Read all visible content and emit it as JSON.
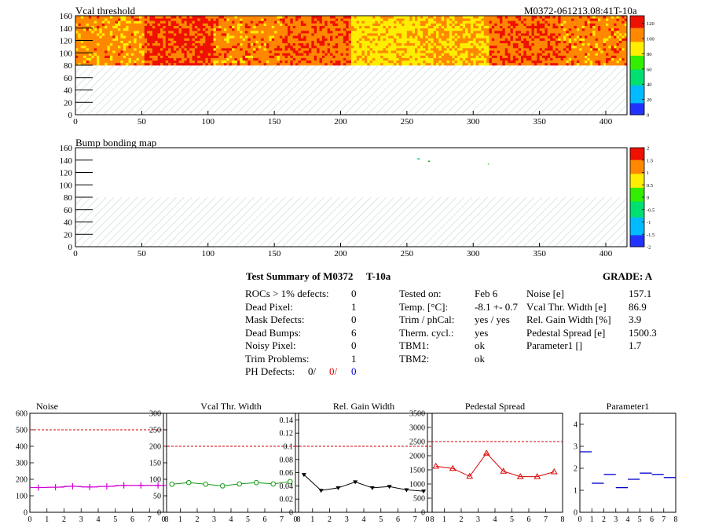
{
  "maps": [
    {
      "title": "Vcal threshold",
      "module_label": "M0372-061213.08:41T-10a",
      "x_ticks": [
        "0",
        "50",
        "100",
        "150",
        "200",
        "250",
        "300",
        "350",
        "400"
      ],
      "y_ticks": [
        "0",
        "20",
        "40",
        "60",
        "80",
        "100",
        "120",
        "140",
        "160"
      ],
      "palette_ticks": [
        "0",
        "20",
        "40",
        "60",
        "80",
        "100",
        "120"
      ],
      "x_range": [
        0,
        416
      ],
      "y_range": [
        0,
        160
      ],
      "hatched_region_y": [
        0,
        80
      ],
      "palette_range": [
        0,
        130
      ]
    },
    {
      "title": "Bump bonding map",
      "x_ticks": [
        "0",
        "50",
        "100",
        "150",
        "200",
        "250",
        "300",
        "350",
        "400"
      ],
      "y_ticks": [
        "0",
        "20",
        "40",
        "60",
        "80",
        "100",
        "120",
        "140",
        "160"
      ],
      "palette_ticks": [
        "-2",
        "-1.5",
        "-1",
        "-0.5",
        "0",
        "0.5",
        "1",
        "1.5",
        "2"
      ],
      "x_range": [
        0,
        416
      ],
      "y_range": [
        0,
        160
      ],
      "hatched_region_y": [
        0,
        80
      ],
      "palette_range": [
        -2,
        2
      ]
    }
  ],
  "summary": {
    "title": "Test Summary of M0372",
    "test_id": "T-10a",
    "grade": "GRADE:  A",
    "col1": [
      {
        "label": "ROCs > 1% defects:",
        "value": "0"
      },
      {
        "label": "Dead Pixel:",
        "value": "1"
      },
      {
        "label": "Mask Defects:",
        "value": "0"
      },
      {
        "label": "Dead Bumps:",
        "value": "6"
      },
      {
        "label": "Noisy Pixel:",
        "value": "0"
      },
      {
        "label": "Trim Problems:",
        "value": "1"
      }
    ],
    "ph_defects": {
      "label": "PH Defects:",
      "v1": "0/",
      "v2": "0/",
      "v3": "0"
    },
    "col2": [
      {
        "label": "Tested on:",
        "value": "Feb 6"
      },
      {
        "label": "Temp. [°C]:",
        "value": "-8.1 +- 0.7"
      },
      {
        "label": "Trim / phCal:",
        "value": "yes / yes"
      },
      {
        "label": "Therm. cycl.:",
        "value": "yes"
      },
      {
        "label": "TBM1:",
        "value": "ok"
      },
      {
        "label": "TBM2:",
        "value": "ok"
      }
    ],
    "col3": [
      {
        "label": "Noise [e]",
        "value": "157.1"
      },
      {
        "label": "Vcal Thr. Width [e]",
        "value": "86.9"
      },
      {
        "label": "Rel. Gain Width [%]",
        "value": "3.9"
      },
      {
        "label": "Pedestal Spread [e]",
        "value": "1500.3"
      },
      {
        "label": "Parameter1 []",
        "value": "1.7"
      }
    ]
  },
  "colors": {
    "magenta": "#d400d4",
    "green": "#119911",
    "black": "#000000",
    "red": "#dd0000",
    "blue": "#0000cc",
    "limit": "#cc0000"
  },
  "chart_data": [
    {
      "type": "line",
      "title": "Noise",
      "x": [
        0.5,
        1.5,
        2.5,
        3.5,
        4.5,
        5.5,
        6.5,
        7.5
      ],
      "values": [
        150,
        152,
        158,
        153,
        157,
        163,
        163,
        163
      ],
      "ylim": [
        0,
        600
      ],
      "xlim": [
        0,
        8
      ],
      "limit_line": 500,
      "y_ticks": [
        "0",
        "100",
        "200",
        "300",
        "400",
        "500",
        "600"
      ],
      "x_ticks": [
        "0",
        "1",
        "2",
        "3",
        "4",
        "5",
        "6",
        "7",
        "8"
      ],
      "marker": "plus",
      "color": "#d400d4"
    },
    {
      "type": "line",
      "title": "Vcal Thr. Width",
      "x": [
        0.5,
        1.5,
        2.5,
        3.5,
        4.5,
        5.5,
        6.5,
        7.5
      ],
      "values": [
        85,
        90,
        85,
        80,
        86,
        90,
        86,
        93
      ],
      "ylim": [
        0,
        300
      ],
      "xlim": [
        0,
        8
      ],
      "limit_line": 200,
      "y_ticks": [
        "0",
        "50",
        "100",
        "150",
        "200",
        "250",
        "300"
      ],
      "x_ticks": [
        "0",
        "1",
        "2",
        "3",
        "4",
        "5",
        "6",
        "7",
        "8"
      ],
      "marker": "circle",
      "color": "#119911"
    },
    {
      "type": "line",
      "title": "Rel. Gain Width",
      "x": [
        0.5,
        1.5,
        2.5,
        3.5,
        4.5,
        5.5,
        6.5,
        7.5
      ],
      "values": [
        0.057,
        0.033,
        0.037,
        0.046,
        0.037,
        0.039,
        0.034,
        0.032
      ],
      "ylim": [
        0,
        0.15
      ],
      "xlim": [
        0,
        8
      ],
      "limit_line": 0.1,
      "y_ticks": [
        "0",
        "0.02",
        "0.04",
        "0.06",
        "0.08",
        "0.1",
        "0.12",
        "0.14"
      ],
      "x_ticks": [
        "0",
        "1",
        "2",
        "3",
        "4",
        "5",
        "6",
        "7",
        "8"
      ],
      "marker": "triangle-down",
      "color": "#000000"
    },
    {
      "type": "line",
      "title": "Pedestal Spread",
      "x": [
        0.5,
        1.5,
        2.5,
        3.5,
        4.5,
        5.5,
        6.5,
        7.5
      ],
      "values": [
        1630,
        1550,
        1270,
        2090,
        1450,
        1260,
        1260,
        1430
      ],
      "ylim": [
        0,
        3500
      ],
      "xlim": [
        0,
        8
      ],
      "limit_line": 2500,
      "y_ticks": [
        "0",
        "500",
        "1000",
        "1500",
        "2000",
        "2500",
        "3000",
        "3500"
      ],
      "x_ticks": [
        "0",
        "1",
        "2",
        "3",
        "4",
        "5",
        "6",
        "7",
        "8"
      ],
      "marker": "triangle-up",
      "color": "#dd0000"
    },
    {
      "type": "scatter",
      "title": "Parameter1",
      "x": [
        0.5,
        1.5,
        2.5,
        3.5,
        4.5,
        5.5,
        6.5,
        7.5
      ],
      "values": [
        2.75,
        1.32,
        1.72,
        1.12,
        1.5,
        1.78,
        1.72,
        1.58
      ],
      "ylim": [
        0,
        4.5
      ],
      "xlim": [
        0,
        8
      ],
      "y_ticks": [
        "0",
        "1",
        "2",
        "3",
        "4"
      ],
      "x_ticks": [
        "0",
        "1",
        "2",
        "3",
        "4",
        "5",
        "6",
        "7",
        "8"
      ],
      "marker": "hbar",
      "color": "#0000cc"
    }
  ]
}
